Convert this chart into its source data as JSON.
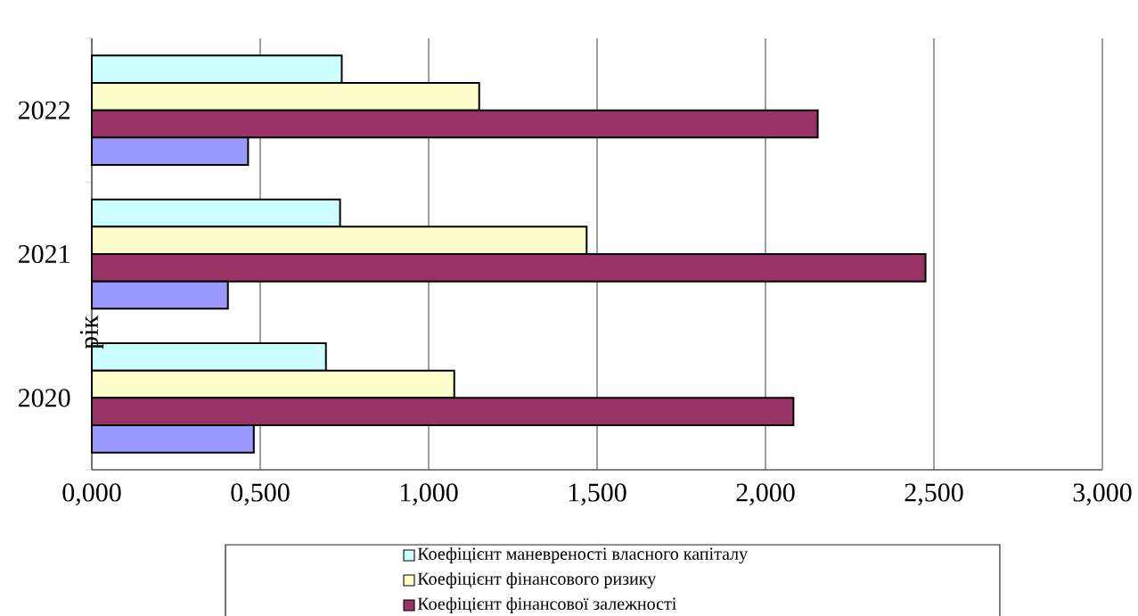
{
  "chart_data": {
    "type": "bar",
    "orientation": "horizontal",
    "ylabel": "рік",
    "categories": [
      "2022",
      "2021",
      "2020"
    ],
    "series": [
      {
        "name": "Коефіцієнт маневреності власного капіталу",
        "color": "#ccffff",
        "values": [
          0.742,
          0.737,
          0.695
        ]
      },
      {
        "name": "Коефіцієнт фінансового ризику",
        "color": "#ffffcc",
        "values": [
          1.15,
          1.469,
          1.076
        ]
      },
      {
        "name": "Коефіцієнт фінансової залежності",
        "color": "#993366",
        "values": [
          2.155,
          2.475,
          2.083
        ]
      },
      {
        "color": "#9999ff",
        "values": [
          0.464,
          0.404,
          0.481
        ]
      }
    ],
    "xlim": [
      0,
      3
    ],
    "xticks": [
      {
        "value": 0,
        "label": "0,000"
      },
      {
        "value": 0.5,
        "label": "0,500"
      },
      {
        "value": 1,
        "label": "1,000"
      },
      {
        "value": 1.5,
        "label": "1,500"
      },
      {
        "value": 2,
        "label": "2,000"
      },
      {
        "value": 2.5,
        "label": "2,500"
      },
      {
        "value": 3,
        "label": "3,000"
      }
    ],
    "grid": "x",
    "legend": "bottom"
  }
}
